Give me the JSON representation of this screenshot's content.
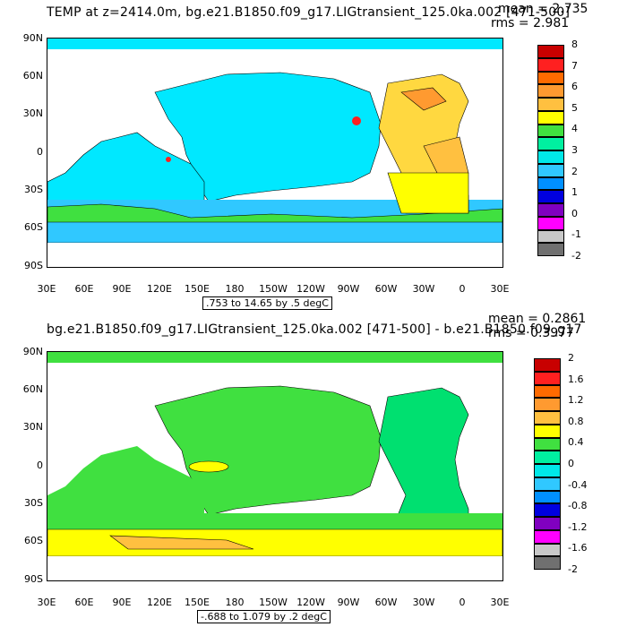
{
  "panels": [
    {
      "title": "TEMP at z=2414.0m, bg.e21.B1850.f09_g17.LIGtransient_125.0ka.002 [471-500]",
      "mean": "mean = 2.735",
      "rms": "rms = 2.981",
      "contour_info": ".753 to 14.65 by .5 degC",
      "lat_ticks": [
        "90N",
        "60N",
        "30N",
        "0",
        "30S",
        "60S",
        "90S"
      ],
      "lon_ticks": [
        "30E",
        "60E",
        "90E",
        "120E",
        "150E",
        "180",
        "150W",
        "120W",
        "90W",
        "60W",
        "30W",
        "0",
        "30E"
      ],
      "colorbar_labels": [
        "8",
        "7",
        "6",
        "5",
        "4",
        "3",
        "2",
        "1",
        "0",
        "-1",
        "-2"
      ],
      "colorbar_colors": [
        "#c80000",
        "#ff2020",
        "#ff6a00",
        "#ff9a30",
        "#ffc040",
        "#ffff00",
        "#40e040",
        "#00f0a0",
        "#00e8e8",
        "#30c8ff",
        "#0090ff",
        "#0000e0",
        "#8000c0",
        "#ff00ff",
        "#c8c8c8",
        "#707070"
      ],
      "ocean_colors": {
        "pacific": "#00e8ff",
        "atlantic": "#ffd840",
        "southern": "#30c8ff",
        "acc": "#40e040",
        "warm": "#ffff00"
      }
    },
    {
      "title": "bg.e21.B1850.f09_g17.LIGtransient_125.0ka.002 [471-500] - b.e21.B1850.f09_g17",
      "mean": "mean = 0.2861",
      "rms": "rms = 0.3977",
      "contour_info": "-.688 to 1.079 by .2 degC",
      "lat_ticks": [
        "90N",
        "60N",
        "30N",
        "0",
        "30S",
        "60S",
        "90S"
      ],
      "lon_ticks": [
        "30E",
        "60E",
        "90E",
        "120E",
        "150E",
        "180",
        "150W",
        "120W",
        "90W",
        "60W",
        "30W",
        "0",
        "30E"
      ],
      "colorbar_labels": [
        "2",
        "1.6",
        "1.2",
        "0.8",
        "0.4",
        "0",
        "-0.4",
        "-0.8",
        "-1.2",
        "-1.6",
        "-2"
      ],
      "colorbar_colors": [
        "#c80000",
        "#ff2020",
        "#ff6a00",
        "#ff9a30",
        "#ffc040",
        "#ffff00",
        "#40e040",
        "#00f0a0",
        "#00e8e8",
        "#30c8ff",
        "#0090ff",
        "#0000e0",
        "#8000c0",
        "#ff00ff",
        "#c8c8c8",
        "#707070"
      ],
      "ocean_colors": {
        "main": "#40e040",
        "atlantic": "#00e070",
        "south": "#ffff00",
        "deep_south": "#ffc040"
      }
    }
  ]
}
